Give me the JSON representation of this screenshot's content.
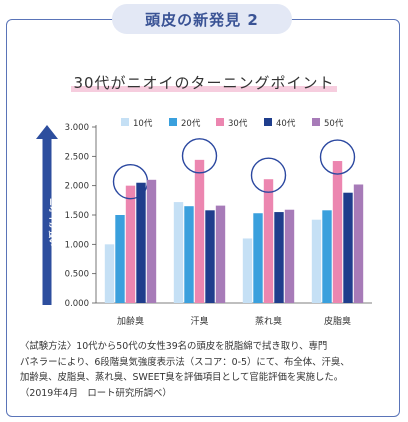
{
  "header": {
    "title": "頭皮の新発見 2"
  },
  "chart_data": {
    "type": "bar",
    "title": "30代がニオイのターニングポイント",
    "ylabel": "ニオイが強い",
    "ylim": [
      0,
      3
    ],
    "yticks": [
      "0.000",
      "0.500",
      "1.000",
      "1.500",
      "2.000",
      "2.500",
      "3.000"
    ],
    "categories": [
      "加齢臭",
      "汗臭",
      "蒸れ臭",
      "皮脂臭"
    ],
    "series": [
      {
        "name": "10代",
        "color": "#c5e0f5",
        "values": [
          1.0,
          1.72,
          1.1,
          1.42
        ]
      },
      {
        "name": "20代",
        "color": "#3aa0dd",
        "values": [
          1.5,
          1.65,
          1.53,
          1.58
        ]
      },
      {
        "name": "30代",
        "color": "#ec86b0",
        "values": [
          2.0,
          2.44,
          2.11,
          2.42
        ]
      },
      {
        "name": "40代",
        "color": "#1f3d8c",
        "values": [
          2.05,
          1.58,
          1.55,
          1.88
        ]
      },
      {
        "name": "50代",
        "color": "#a77bb8",
        "values": [
          2.1,
          1.66,
          1.59,
          2.02
        ]
      }
    ],
    "highlight_series": "30代",
    "legend": "top",
    "grid": false
  },
  "note": {
    "lines": [
      "〈試験方法〉10代から50代の女性39名の頭皮を脱脂綿で拭き取り、専門",
      "パネラーにより、6段階臭気強度表示法（スコア：0-5）にて、布全体、汗臭、",
      "加齢臭、皮脂臭、蒸れ臭、SWEET臭を評価項目として官能評価を実施した。",
      "（2019年4月　ロート研究所調べ）"
    ]
  }
}
